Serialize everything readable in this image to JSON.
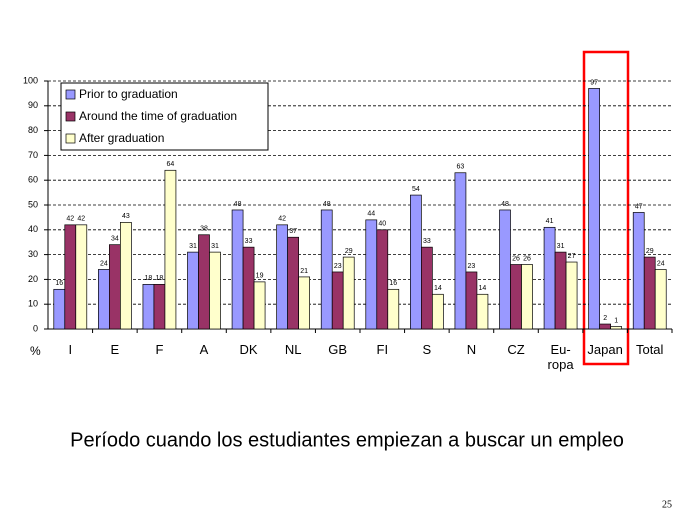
{
  "chart_data": {
    "type": "bar",
    "caption": "Período cuando los estudiantes empiezan a buscar un empleo",
    "y_unit": "%",
    "page_number": "25",
    "categories": [
      "I",
      "E",
      "F",
      "A",
      "DK",
      "NL",
      "GB",
      "FI",
      "S",
      "N",
      "CZ",
      "Eu-ropa",
      "Japan",
      "Total"
    ],
    "series": [
      {
        "name": "Prior to graduation",
        "color": "#9999ff",
        "values": [
          16,
          24,
          18,
          31,
          48,
          42,
          48,
          44,
          54,
          63,
          48,
          41,
          97,
          47
        ]
      },
      {
        "name": "Around the time of graduation",
        "color": "#993366",
        "values": [
          42,
          34,
          18,
          38,
          33,
          37,
          23,
          40,
          33,
          23,
          26,
          31,
          2,
          29
        ]
      },
      {
        "name": "After graduation",
        "color": "#ffffcc",
        "values": [
          42,
          43,
          64,
          31,
          19,
          21,
          29,
          16,
          14,
          14,
          26,
          27,
          1,
          24
        ]
      }
    ],
    "ylim": [
      0,
      100
    ],
    "yticks": [
      0,
      10,
      20,
      30,
      40,
      50,
      60,
      70,
      80,
      90,
      100
    ],
    "grid": true,
    "legend": "top-left"
  }
}
